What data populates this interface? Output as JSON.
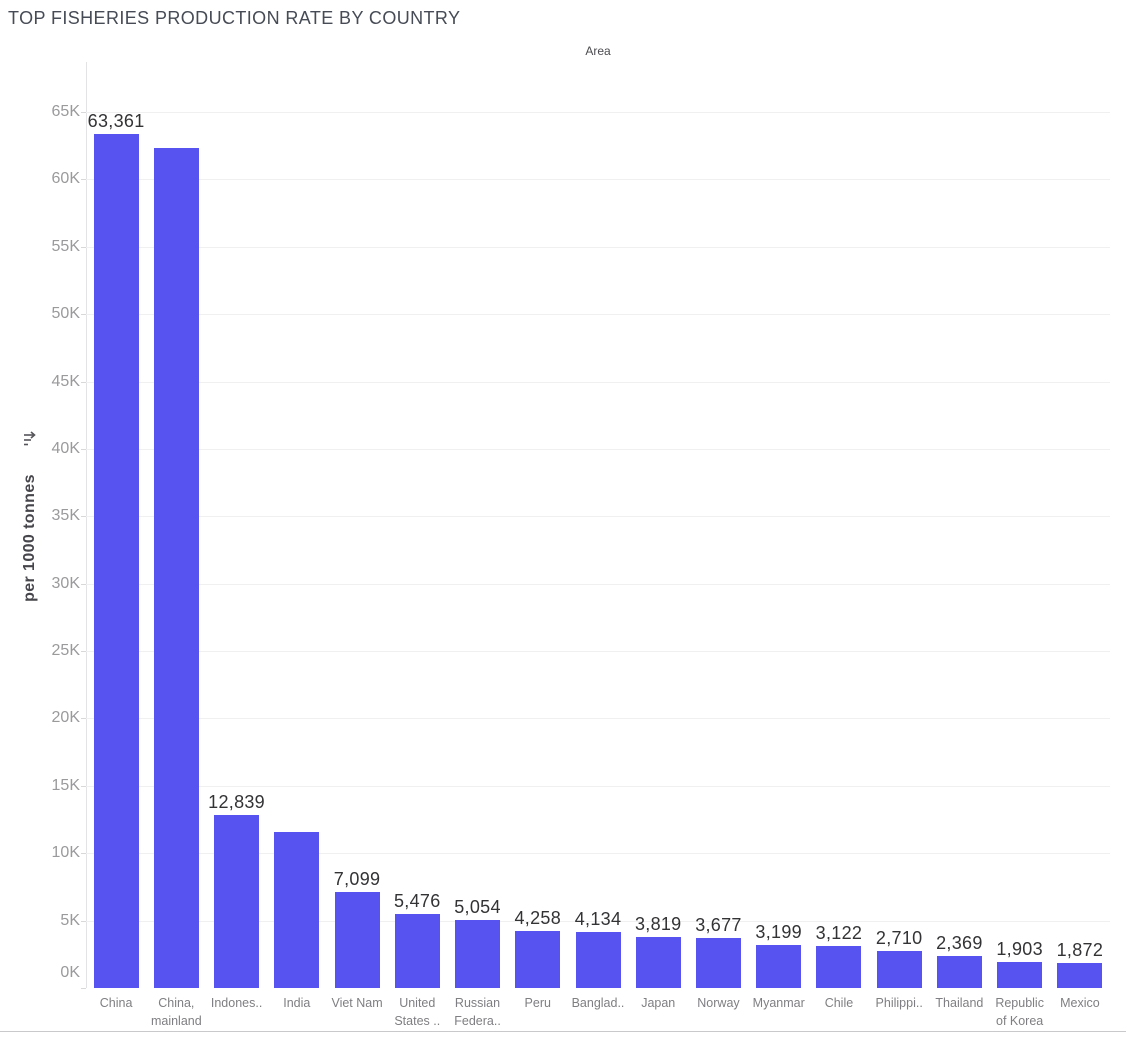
{
  "title": "TOP FISHERIES PRODUCTION RATE BY COUNTRY",
  "column_header": "Area",
  "y_axis": {
    "title": "per 1000 tonnes",
    "ticks": [
      "0K",
      "5K",
      "10K",
      "15K",
      "20K",
      "25K",
      "30K",
      "35K",
      "40K",
      "45K",
      "50K",
      "55K",
      "60K",
      "65K"
    ],
    "tick_step": 5000
  },
  "icons": {
    "sort_icon": "sort-axis-icon"
  },
  "colors": {
    "bar": "#5653F0",
    "title_text": "#464b55",
    "tick_text": "#9a9a9d",
    "category_text": "#7f7f83",
    "value_text": "#333336",
    "gridline": "#f0f0f1"
  },
  "chart_data": {
    "type": "bar",
    "title": "TOP FISHERIES PRODUCTION RATE BY COUNTRY",
    "xlabel": "Area",
    "ylabel": "per 1000 tonnes",
    "ylim": [
      0,
      68700
    ],
    "grid": true,
    "legend": false,
    "categories": [
      "China",
      "China, mainland",
      "Indones..",
      "India",
      "Viet Nam",
      "United States ..",
      "Russian Federa..",
      "Peru",
      "Banglad..",
      "Japan",
      "Norway",
      "Myanmar",
      "Chile",
      "Philippi..",
      "Thailand",
      "Republic of Korea",
      "Mexico"
    ],
    "category_label_lines": [
      [
        "China"
      ],
      [
        "China,",
        "mainland"
      ],
      [
        "Indones.."
      ],
      [
        "India"
      ],
      [
        "Viet Nam"
      ],
      [
        "United",
        "States .."
      ],
      [
        "Russian",
        "Federa.."
      ],
      [
        "Peru"
      ],
      [
        "Banglad.."
      ],
      [
        "Japan"
      ],
      [
        "Norway"
      ],
      [
        "Myanmar"
      ],
      [
        "Chile"
      ],
      [
        "Philippi.."
      ],
      [
        "Thailand"
      ],
      [
        "Republic",
        "of Korea"
      ],
      [
        "Mexico"
      ]
    ],
    "values": [
      63361,
      62300,
      12839,
      11600,
      7099,
      5476,
      5054,
      4258,
      4134,
      3819,
      3677,
      3199,
      3122,
      2710,
      2369,
      1903,
      1872
    ],
    "value_labels": [
      "63,361",
      "",
      "12,839",
      "",
      "7,099",
      "5,476",
      "5,054",
      "4,258",
      "4,134",
      "3,819",
      "3,677",
      "3,199",
      "3,122",
      "2,710",
      "2,369",
      "1,903",
      "1,872"
    ]
  }
}
